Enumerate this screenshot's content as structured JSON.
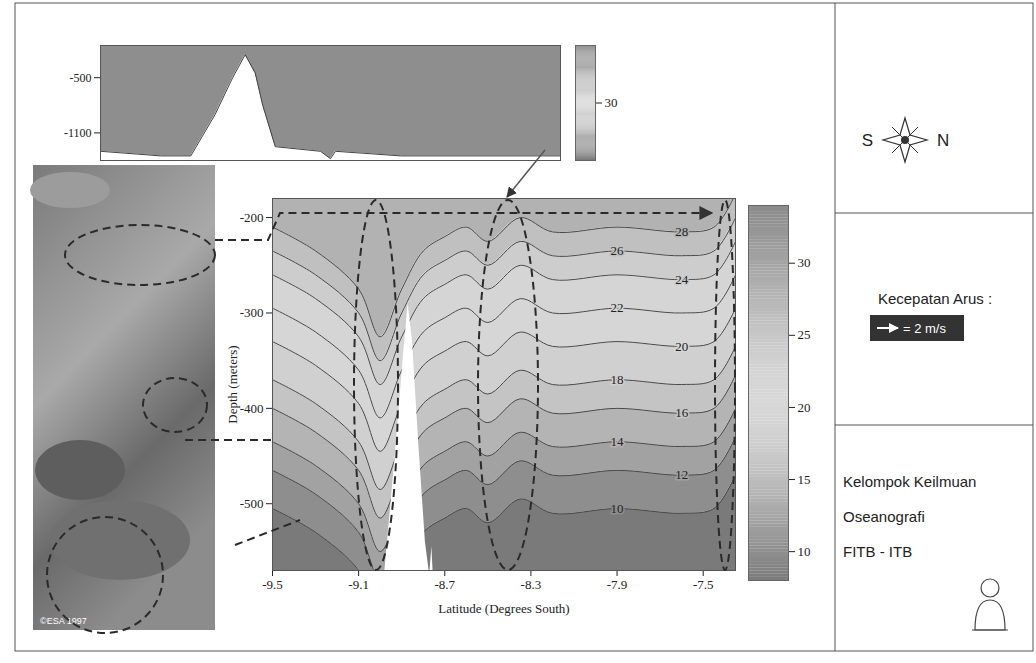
{
  "chart_data": [
    {
      "type": "contour",
      "x_label": "Latitude (Degrees South)",
      "y_label": "Depth (meters)",
      "xlim": [
        -9.5,
        -7.35
      ],
      "xticks": [
        -9.5,
        -9.1,
        -8.7,
        -8.3,
        -7.9,
        -7.5
      ],
      "ylim": [
        -570,
        -180
      ],
      "yticks": [
        -200,
        -300,
        -400,
        -500
      ],
      "x": [
        -9.5,
        -9.3,
        -9.1,
        -9.0,
        -8.9,
        -8.8,
        -8.7,
        -8.6,
        -8.5,
        -8.35,
        -8.2,
        -7.9,
        -7.6,
        -7.45,
        -7.35
      ],
      "levels": [
        28,
        26,
        24,
        22,
        20,
        18,
        16,
        14,
        12,
        10
      ],
      "contours": [
        [
          -210,
          -235,
          -275,
          -325,
          -275,
          -235,
          -220,
          -210,
          -225,
          -200,
          -215,
          -210,
          -215,
          -210,
          -175
        ],
        [
          -235,
          -260,
          -300,
          -350,
          -300,
          -260,
          -245,
          -235,
          -250,
          -225,
          -240,
          -235,
          -240,
          -235,
          -200
        ],
        [
          -260,
          -285,
          -325,
          -375,
          -325,
          -285,
          -270,
          -260,
          -275,
          -250,
          -265,
          -260,
          -265,
          -260,
          -225
        ],
        [
          -295,
          -320,
          -360,
          -410,
          -360,
          -320,
          -305,
          -295,
          -310,
          -285,
          -300,
          -295,
          -300,
          -295,
          -260
        ],
        [
          -330,
          -355,
          -395,
          -445,
          -395,
          -355,
          -340,
          -330,
          -345,
          -320,
          -335,
          -330,
          -335,
          -330,
          -295
        ],
        [
          -370,
          -395,
          -435,
          -485,
          -435,
          -395,
          -380,
          -370,
          -385,
          -360,
          -375,
          -370,
          -375,
          -370,
          -335
        ],
        [
          -400,
          -425,
          -465,
          -515,
          -465,
          -425,
          -410,
          -400,
          -415,
          -390,
          -405,
          -400,
          -405,
          -400,
          -365
        ],
        [
          -435,
          -460,
          -500,
          -550,
          -500,
          -460,
          -445,
          -435,
          -450,
          -425,
          -440,
          -435,
          -440,
          -435,
          -400
        ],
        [
          -465,
          -490,
          -530,
          -580,
          -530,
          -490,
          -475,
          -465,
          -480,
          -455,
          -470,
          -465,
          -470,
          -465,
          -430
        ],
        [
          -505,
          -530,
          -570,
          -620,
          -570,
          -530,
          -515,
          -505,
          -520,
          -495,
          -510,
          -505,
          -510,
          -505,
          -470
        ]
      ],
      "bathymetry": {
        "x": [
          -8.98,
          -8.93,
          -8.89,
          -8.87,
          -8.85,
          -8.82,
          -8.79,
          -8.77,
          -8.76,
          -8.75
        ],
        "values": [
          -575,
          -450,
          -340,
          -290,
          -330,
          -440,
          -540,
          -575,
          -545,
          -590
        ]
      },
      "colorbar": {
        "range": [
          8,
          34
        ],
        "ticks": [
          10,
          15,
          20,
          25,
          30
        ]
      }
    },
    {
      "type": "area",
      "xlim": [
        -11.5,
        -6.0
      ],
      "ylim": [
        -1400,
        -150
      ],
      "yticks": [
        -500,
        -1100
      ],
      "tick_labels": "y",
      "x": [
        -11.5,
        -10.78,
        -10.42,
        -10.13,
        -9.92,
        -9.77,
        -9.65,
        -9.56,
        -9.41,
        -8.87,
        -8.75,
        -8.69,
        -7.91,
        -6.0
      ],
      "values": [
        -1300,
        -1350,
        -1350,
        -900,
        -500,
        -250,
        -450,
        -800,
        -1250,
        -1300,
        -1380,
        -1300,
        -1350,
        -1350
      ],
      "colorbar": {
        "range": [
          22,
          38
        ],
        "ticks": [
          30
        ]
      }
    }
  ],
  "satellite_image": {
    "credit": "©ESA 1997"
  },
  "side_panel": {
    "compass": {
      "left": "S",
      "right": "N"
    },
    "current_scale": {
      "title": "Kecepatan Arus :",
      "label": "= 2 m/s"
    },
    "group": [
      "Kelompok Keilmuan",
      "Oseanografi",
      "FITB - ITB"
    ]
  }
}
